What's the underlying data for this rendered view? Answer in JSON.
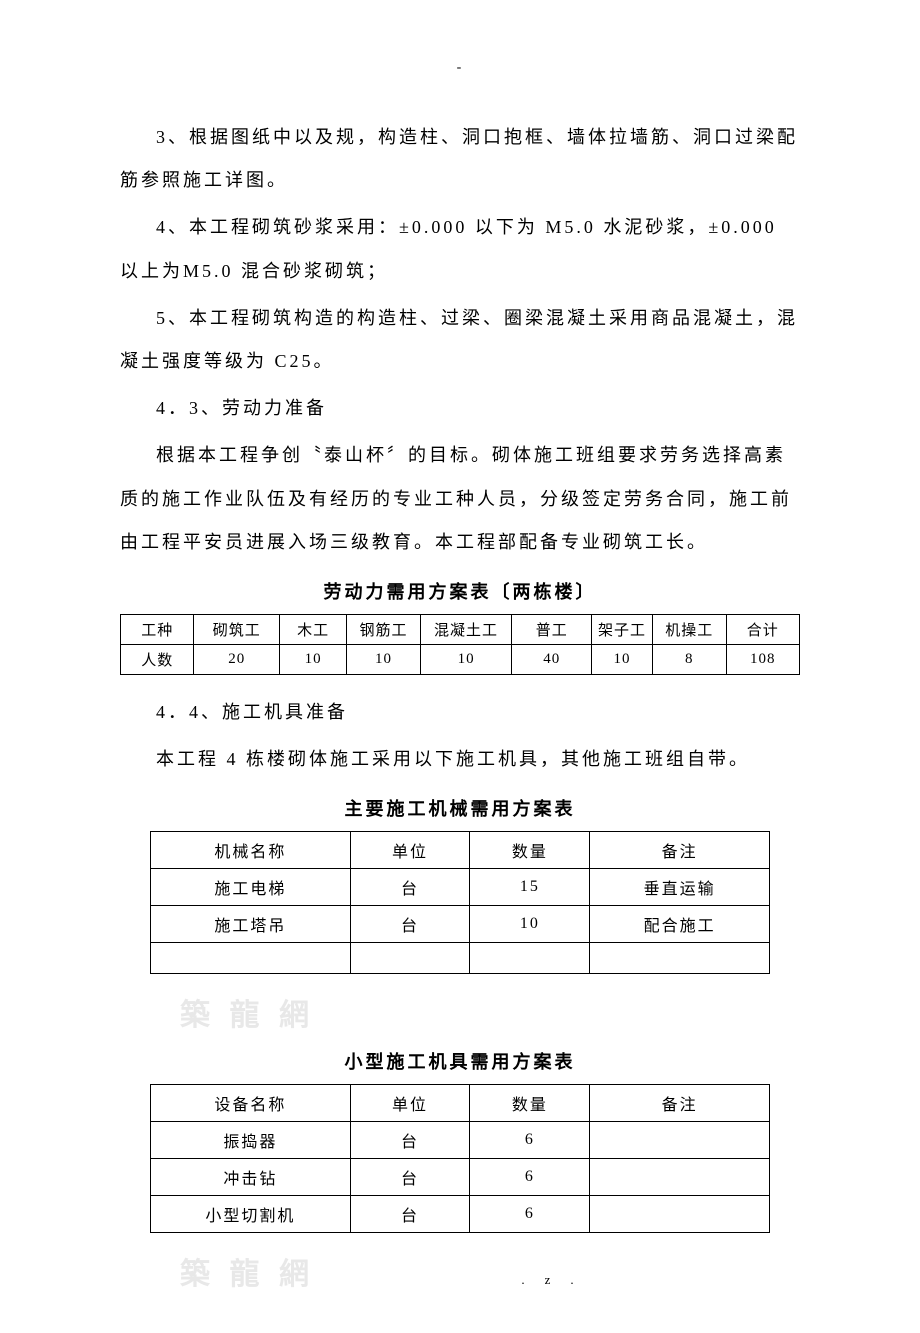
{
  "dash_top": "-",
  "paragraphs": {
    "p1": "3、根据图纸中以及规，构造柱、洞口抱框、墙体拉墙筋、洞口过梁配筋参照施工详图。",
    "p2": "4、本工程砌筑砂浆采用：±0.000 以下为 M5.0 水泥砂浆，±0.000 以上为M5.0 混合砂浆砌筑；",
    "p3": "5、本工程砌筑构造的构造柱、过梁、圈梁混凝土采用商品混凝土，混凝土强度等级为 C25。",
    "p4": "4．3、劳动力准备",
    "p5": "根据本工程争创〝泰山杯〞的目标。砌体施工班组要求劳务选择高素质的施工作业队伍及有经历的专业工种人员，分级签定劳务合同，施工前由工程平安员进展入场三级教育。本工程部配备专业砌筑工长。",
    "p6": "4．4、施工机具准备",
    "p7": "本工程 4 栋楼砌体施工采用以下施工机具，其他施工班组自带。"
  },
  "labor_table": {
    "title": "劳动力需用方案表〔两栋楼〕",
    "headers": [
      "工种",
      "砌筑工",
      "木工",
      "钢筋工",
      "混凝土工",
      "普工",
      "架子工",
      "机操工",
      "合计"
    ],
    "row_label": "人数",
    "values": [
      "20",
      "10",
      "10",
      "10",
      "40",
      "10",
      "8",
      "108"
    ],
    "col_widths": [
      "60",
      "70",
      "55",
      "60",
      "75",
      "65",
      "50",
      "60",
      "60"
    ]
  },
  "machinery_table": {
    "title": "主要施工机械需用方案表",
    "headers": [
      "机械名称",
      "单位",
      "数量",
      "备注"
    ],
    "rows": [
      [
        "施工电梯",
        "台",
        "15",
        "垂直运输"
      ],
      [
        "施工塔吊",
        "台",
        "10",
        "配合施工"
      ],
      [
        "",
        "",
        "",
        ""
      ]
    ],
    "col_widths": [
      "200",
      "120",
      "120",
      "180"
    ]
  },
  "tools_table": {
    "title": "小型施工机具需用方案表",
    "headers": [
      "设备名称",
      "单位",
      "数量",
      "备注"
    ],
    "rows": [
      [
        "振捣器",
        "台",
        "6",
        ""
      ],
      [
        "冲击钻",
        "台",
        "6",
        ""
      ],
      [
        "小型切割机",
        "台",
        "6",
        ""
      ]
    ],
    "col_widths": [
      "200",
      "120",
      "120",
      "180"
    ]
  },
  "watermark": "築 龍 網",
  "footer": ".z."
}
